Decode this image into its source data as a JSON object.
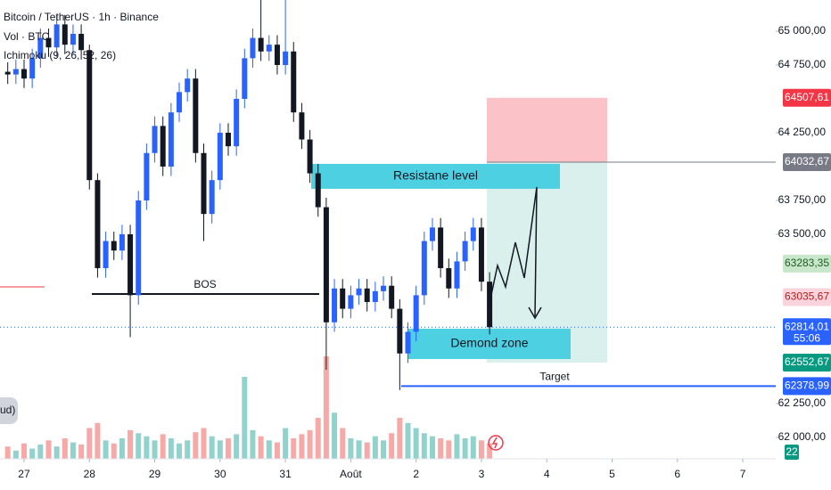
{
  "chart_data": {
    "type": "candlestick",
    "header": [
      "Bitcoin / TetherUS · 1h · Binance",
      "Vol · BTC",
      "Ichimoku (9, 26, 52, 26)"
    ],
    "left_badge": "ud)",
    "bottom_badge": "22",
    "xlim": [
      -8.84,
      276.1
    ],
    "ylim": [
      61842,
      65230
    ],
    "xticks": [
      {
        "value": 0,
        "label": "27"
      },
      {
        "value": 24,
        "label": "28"
      },
      {
        "value": 48,
        "label": "29"
      },
      {
        "value": 72,
        "label": "30"
      },
      {
        "value": 96,
        "label": "31"
      },
      {
        "value": 120,
        "label": "Août"
      },
      {
        "value": 144,
        "label": "2"
      },
      {
        "value": 168,
        "label": "3"
      },
      {
        "value": 192,
        "label": "4"
      },
      {
        "value": 216,
        "label": "5"
      },
      {
        "value": 240,
        "label": "6"
      },
      {
        "value": 264,
        "label": "7"
      }
    ],
    "yticks": [
      {
        "value": 65000,
        "label": "65 000,00"
      },
      {
        "value": 64750,
        "label": "64 750,00"
      },
      {
        "value": 64250,
        "label": "64 250,00"
      },
      {
        "value": 63750,
        "label": "63 750,00"
      },
      {
        "value": 63500,
        "label": "63 500,00"
      },
      {
        "value": 62250,
        "label": "62 250,00"
      },
      {
        "value": 62000,
        "label": "62 000,00"
      }
    ],
    "up_color": "#2962ff",
    "down_color": "#131722",
    "x": [
      -6,
      -3,
      0,
      3,
      6,
      9,
      12,
      15,
      18,
      21,
      24,
      27,
      30,
      33,
      36,
      39,
      42,
      45,
      48,
      51,
      54,
      57,
      60,
      63,
      66,
      69,
      72,
      75,
      78,
      81,
      84,
      87,
      90,
      93,
      96,
      99,
      102,
      105,
      108,
      111,
      114,
      117,
      120,
      123,
      126,
      129,
      132,
      135,
      138,
      141,
      144,
      147,
      150,
      153,
      156,
      159,
      162,
      165,
      168,
      171
    ],
    "open": [
      64700,
      64680,
      64720,
      64650,
      64800,
      64950,
      64880,
      65050,
      64900,
      64980,
      64860,
      63900,
      63250,
      63450,
      63380,
      63500,
      63050,
      63750,
      64100,
      64300,
      64000,
      64400,
      64550,
      64650,
      64100,
      63650,
      63900,
      64250,
      64150,
      64500,
      64800,
      64950,
      64850,
      64900,
      64750,
      64850,
      64400,
      64200,
      63950,
      63700,
      62850,
      63100,
      62950,
      63050,
      63100,
      63000,
      63080,
      63120,
      62950,
      62620,
      62780,
      63050,
      63450,
      63550,
      63250,
      63100,
      63300,
      63450,
      63550,
      63150
    ],
    "high": [
      64770,
      64790,
      64790,
      64870,
      65020,
      65020,
      65120,
      65120,
      65050,
      65050,
      64900,
      63950,
      63520,
      63520,
      63570,
      63570,
      63820,
      64170,
      64370,
      64370,
      64470,
      64620,
      64720,
      64720,
      64170,
      63970,
      64320,
      64320,
      64570,
      64870,
      65020,
      65230,
      64970,
      64970,
      65230,
      64920,
      64470,
      64270,
      64020,
      63770,
      63170,
      63170,
      63120,
      63170,
      63170,
      63150,
      63190,
      63190,
      63020,
      62850,
      63120,
      63520,
      63620,
      63620,
      63320,
      63370,
      63520,
      63620,
      63620,
      63220
    ],
    "low": [
      64610,
      64610,
      64580,
      64580,
      64730,
      64810,
      64810,
      64830,
      64830,
      64790,
      63830,
      63180,
      63180,
      63310,
      63310,
      62740,
      62980,
      63680,
      64030,
      63930,
      63930,
      64330,
      64480,
      64030,
      63450,
      63580,
      63830,
      64080,
      64080,
      64430,
      64730,
      64780,
      64780,
      64680,
      64680,
      64330,
      64130,
      63880,
      63630,
      62500,
      62780,
      62880,
      62880,
      62980,
      62930,
      62930,
      63010,
      62880,
      62350,
      62550,
      62710,
      62980,
      63380,
      63180,
      63030,
      63030,
      63230,
      63380,
      63080,
      62760
    ],
    "close": [
      64680,
      64720,
      64650,
      64800,
      64950,
      64880,
      65050,
      64900,
      64980,
      64860,
      63900,
      63250,
      63450,
      63380,
      63500,
      63050,
      63750,
      64100,
      64300,
      64000,
      64400,
      64550,
      64650,
      64100,
      63650,
      63900,
      64250,
      64150,
      64500,
      64800,
      64950,
      64850,
      64900,
      64750,
      64850,
      64400,
      64200,
      63950,
      63700,
      62850,
      63100,
      62950,
      63050,
      63100,
      63000,
      63080,
      63120,
      62950,
      62620,
      62780,
      63050,
      63450,
      63550,
      63250,
      63100,
      63300,
      63450,
      63550,
      63150,
      62814.01
    ],
    "volume": [
      12,
      8,
      15,
      10,
      14,
      18,
      12,
      20,
      16,
      14,
      30,
      35,
      18,
      15,
      20,
      28,
      25,
      22,
      18,
      24,
      20,
      15,
      18,
      26,
      30,
      22,
      18,
      20,
      24,
      80,
      28,
      22,
      18,
      16,
      30,
      20,
      24,
      28,
      40,
      100,
      45,
      30,
      20,
      18,
      16,
      22,
      18,
      25,
      40,
      35,
      30,
      25,
      22,
      20,
      18,
      24,
      20,
      22,
      18,
      15
    ],
    "vlim": [
      0,
      100
    ],
    "price_tags": [
      {
        "value": 64507.61,
        "label": "64507,61",
        "color": "#f23645",
        "text_color": "#ffffff"
      },
      {
        "value": 64032.67,
        "label": "64032,67",
        "color": "#787b86",
        "text_color": "#ffffff"
      },
      {
        "value": 63283.35,
        "label": "63283,35",
        "color": "#c8e6c9",
        "text_color": "#1b5e20"
      },
      {
        "value": 63035.67,
        "label": "63035,67",
        "color": "#fad4dc",
        "text_color": "#b71c1c"
      },
      {
        "value": 62814.01,
        "label": "62814,01",
        "color": "#2962ff",
        "text_color": "#ffffff",
        "countdown": "55:06"
      },
      {
        "value": 62552.67,
        "label": "62552,67",
        "color": "#089981",
        "text_color": "#ffffff"
      },
      {
        "value": 62378.99,
        "label": "62378,99",
        "color": "#2962ff",
        "text_color": "#ffffff"
      }
    ],
    "resistance": {
      "label": "Resistane level",
      "top": 64020,
      "bottom": 63836,
      "color": "#4dd0e1"
    },
    "demand": {
      "label": "Demond zone",
      "top": 62803,
      "bottom": 62579,
      "color": "#4dd0e1"
    },
    "bos": {
      "label": "BOS",
      "price": 63059
    },
    "target": {
      "label": "Target",
      "price": 62378.99,
      "color": "#2962ff"
    },
    "position": {
      "stop": 64507.61,
      "entry": 64032.67,
      "take_profit": 62552.67
    }
  }
}
